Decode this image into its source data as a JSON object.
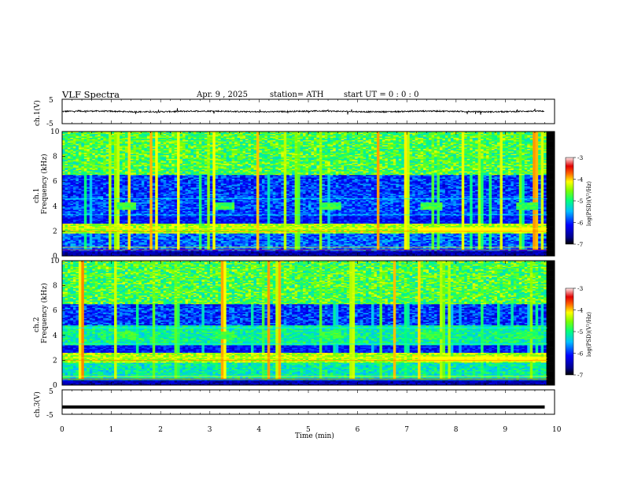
{
  "header": {
    "title": "VLF  Spectra",
    "date": "Apr. 9  , 2025",
    "station": "station= ATH",
    "start_ut": "start  UT  =   0  : 0   : 0"
  },
  "chart_data": [
    {
      "type": "line",
      "panel": "ch1-waveform",
      "ylabel": "ch.1(V)",
      "ylim": [
        -5,
        5
      ],
      "yticks": [
        "5",
        "-5"
      ],
      "xlim": [
        0,
        10
      ],
      "baseline": 0,
      "series": [
        {
          "note_visible": "black noisy waveform around 0 V, amplitude about ±1 V",
          "color": "#000000"
        }
      ]
    },
    {
      "type": "heatmap",
      "panel": "ch1-spectrogram",
      "ylabel_top": "ch.1",
      "ylabel": "Frequency  (kHz)",
      "ylim": [
        0,
        10
      ],
      "yticks": [
        "0",
        "2",
        "4",
        "6",
        "8",
        "10"
      ],
      "xlim": [
        0,
        10
      ],
      "colorbar": {
        "label": "log(PSD)(V²/Hz)",
        "range": [
          -7,
          -3
        ],
        "ticks": [
          "-3",
          "-4",
          "-5",
          "-6",
          "-7"
        ]
      },
      "features": {
        "bursts_at_4kHz_min": [
          1.1,
          3.1,
          5.25,
          7.3,
          9.25
        ],
        "step_change_at_min": 7.2
      }
    },
    {
      "type": "heatmap",
      "panel": "ch2-spectrogram",
      "ylabel_top": "ch.2",
      "ylabel": "Frequency  (kHz)",
      "ylim": [
        0,
        10
      ],
      "yticks": [
        "0",
        "2",
        "4",
        "6",
        "8",
        "10"
      ],
      "xlim": [
        0,
        10
      ],
      "colorbar": {
        "label": "log(PSD)(V²/Hz)",
        "range": [
          -7,
          -3
        ],
        "ticks": [
          "-3",
          "-4",
          "-5",
          "-6",
          "-7"
        ]
      },
      "features": {
        "bursts_at_4kHz_min": [
          1.1,
          3.1,
          5.25,
          7.3,
          9.25
        ],
        "step_change_at_min": 7.2
      }
    },
    {
      "type": "line",
      "panel": "ch3-waveform",
      "ylabel": "ch.3(V)",
      "ylim": [
        -5,
        5
      ],
      "yticks": [
        "5",
        "-5"
      ],
      "xlim": [
        0,
        9.8
      ],
      "series": [
        {
          "note_visible": "flat thick black line at about -2 V",
          "values_constant": -2,
          "color": "#000000"
        }
      ]
    }
  ],
  "xaxis": {
    "label": "Time  (min)",
    "ticks": [
      "0",
      "1",
      "2",
      "3",
      "4",
      "5",
      "6",
      "7",
      "8",
      "9",
      "10"
    ]
  }
}
